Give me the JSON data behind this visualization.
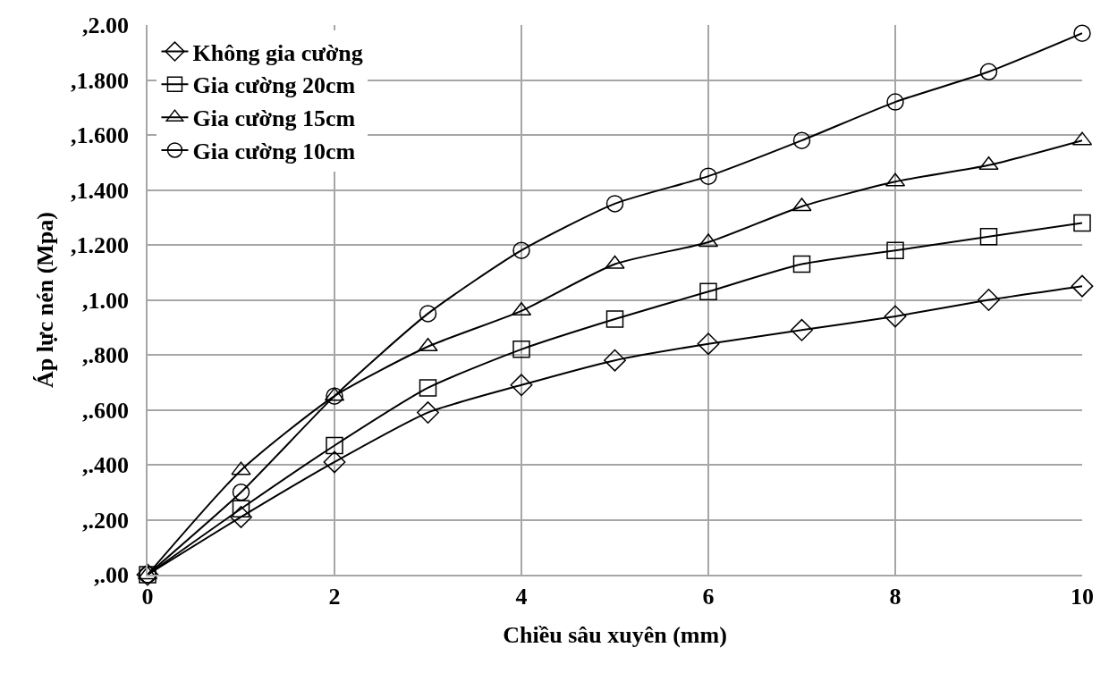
{
  "chart_data": {
    "type": "line",
    "xlabel": "Chiều sâu xuyên (mm)",
    "ylabel": "Áp lực nén (Mpa)",
    "x": [
      0,
      1,
      2,
      3,
      4,
      5,
      6,
      7,
      8,
      9,
      10
    ],
    "series": [
      {
        "name": "Không gia cường",
        "color": "#000000",
        "marker": "diamond",
        "values": [
          0,
          0.21,
          0.41,
          0.59,
          0.69,
          0.78,
          0.84,
          0.89,
          0.94,
          1.0,
          1.05
        ]
      },
      {
        "name": "Gia cường 20cm",
        "color": "#000000",
        "marker": "square",
        "values": [
          0,
          0.24,
          0.47,
          0.68,
          0.82,
          0.93,
          1.03,
          1.13,
          1.18,
          1.23,
          1.28
        ]
      },
      {
        "name": "Gia cường 15cm",
        "color": "#000000",
        "marker": "triangle",
        "values": [
          0,
          0.38,
          0.65,
          0.83,
          0.96,
          1.13,
          1.21,
          1.34,
          1.43,
          1.49,
          1.58
        ]
      },
      {
        "name": "Gia cường 10cm",
        "color": "#000000",
        "marker": "circle",
        "values": [
          0,
          0.3,
          0.65,
          0.95,
          1.18,
          1.35,
          1.45,
          1.58,
          1.72,
          1.83,
          1.97
        ]
      }
    ],
    "xlim": [
      0,
      10
    ],
    "xticks": [
      0,
      2,
      4,
      6,
      8,
      10
    ],
    "ylim": [
      0,
      2
    ],
    "yticks": [
      {
        "value": 0,
        "label": ",.00"
      },
      {
        "value": 0.2,
        "label": ",.200"
      },
      {
        "value": 0.4,
        "label": ",.400"
      },
      {
        "value": 0.6,
        "label": ",.600"
      },
      {
        "value": 0.8,
        "label": ",.800"
      },
      {
        "value": 1,
        "label": ",1.00"
      },
      {
        "value": 1.2,
        "label": ",1.200"
      },
      {
        "value": 1.4,
        "label": ",1.400"
      },
      {
        "value": 1.6,
        "label": ",1.600"
      },
      {
        "value": 1.8,
        "label": ",1.800"
      },
      {
        "value": 2,
        "label": ",2.00"
      }
    ],
    "grid": true,
    "legend": "top left",
    "line_style": "solid"
  }
}
